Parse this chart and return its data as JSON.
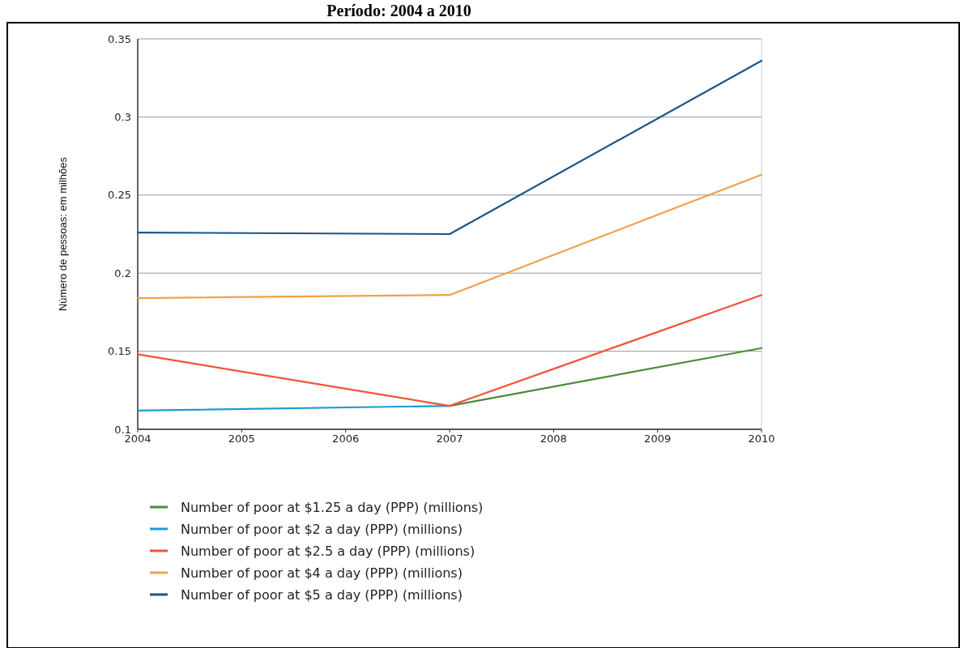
{
  "chart_data": {
    "type": "line",
    "title": "Período: 2004 a 2010",
    "ylabel": "Número de pessoas: em milhões",
    "x": [
      2004,
      2007,
      2010
    ],
    "series": [
      {
        "name": "Number of poor at $1.25 a day (PPP) (millions)",
        "color": "#4a8c3a",
        "values": [
          null,
          0.115,
          0.152
        ]
      },
      {
        "name": "Number of poor at $2 a day (PPP) (millions)",
        "color": "#1e9ad0",
        "values": [
          0.112,
          0.115,
          null
        ]
      },
      {
        "name": "Number of poor at $2.5 a day (PPP) (millions)",
        "color": "#f4523a",
        "values": [
          0.148,
          0.115,
          0.186
        ]
      },
      {
        "name": "Number of poor at $4 a day (PPP) (millions)",
        "color": "#f0a14a",
        "values": [
          0.184,
          0.186,
          0.263
        ]
      },
      {
        "name": "Number of poor at $5 a day (PPP) (millions)",
        "color": "#1a5586",
        "values": [
          0.226,
          0.225,
          0.336
        ]
      }
    ],
    "xlim": [
      2004,
      2010
    ],
    "xticks": [
      2004,
      2005,
      2006,
      2007,
      2008,
      2009,
      2010
    ],
    "ylim": [
      0.1,
      0.35
    ],
    "yticks": [
      0.1,
      0.15,
      0.2,
      0.25,
      0.3,
      0.35
    ],
    "grid": "y",
    "legend": "bottom"
  }
}
